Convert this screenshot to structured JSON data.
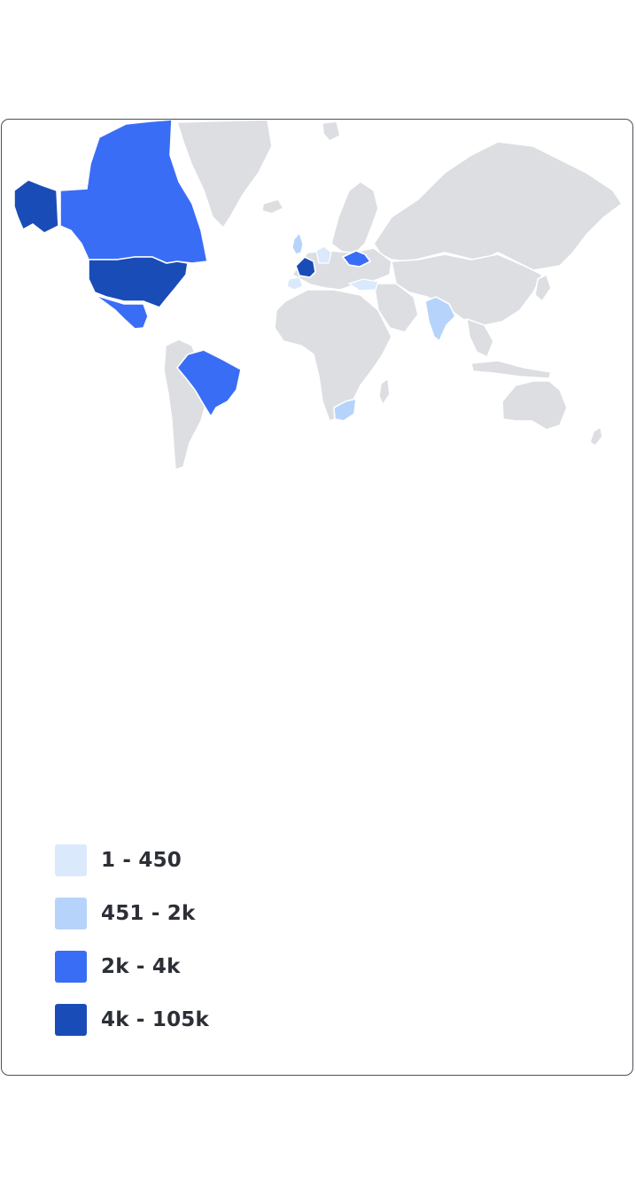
{
  "legend": [
    {
      "label": "1 - 450",
      "color": "#dbe9fd"
    },
    {
      "label": "451 - 2k",
      "color": "#b6d4fb"
    },
    {
      "label": "2k - 4k",
      "color": "#3a6df6"
    },
    {
      "label": "4k - 105k",
      "color": "#1a4cb7"
    }
  ],
  "map_data": {
    "type": "choropleth",
    "base_color": "#dcdee2",
    "regions": [
      {
        "region": "Alaska (US)",
        "bucket": "4k - 105k"
      },
      {
        "region": "United States",
        "bucket": "4k - 105k"
      },
      {
        "region": "France",
        "bucket": "4k - 105k"
      },
      {
        "region": "Canada",
        "bucket": "2k - 4k"
      },
      {
        "region": "Mexico",
        "bucket": "2k - 4k"
      },
      {
        "region": "Brazil",
        "bucket": "2k - 4k"
      },
      {
        "region": "Ukraine",
        "bucket": "2k - 4k"
      },
      {
        "region": "India",
        "bucket": "451 - 2k"
      },
      {
        "region": "South Africa",
        "bucket": "451 - 2k"
      },
      {
        "region": "United Kingdom",
        "bucket": "451 - 2k"
      },
      {
        "region": "Spain",
        "bucket": "1 - 450"
      },
      {
        "region": "Germany",
        "bucket": "1 - 450"
      },
      {
        "region": "Turkey",
        "bucket": "1 - 450"
      }
    ]
  }
}
